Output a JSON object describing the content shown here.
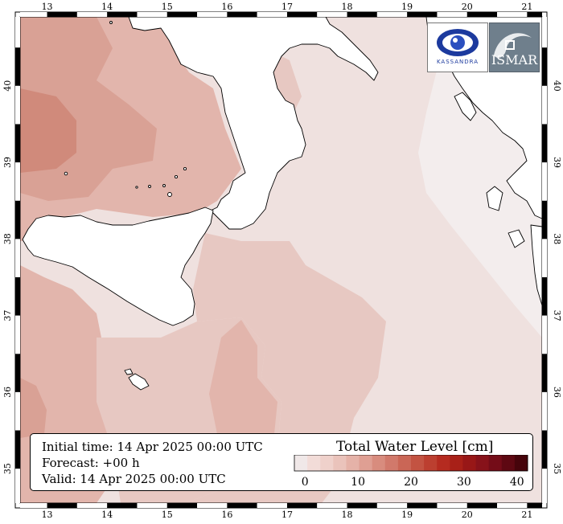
{
  "map": {
    "lon_ticks": [
      13,
      14,
      15,
      16,
      17,
      18,
      19,
      20,
      21
    ],
    "lat_ticks": [
      35,
      36,
      37,
      38,
      39,
      40
    ],
    "lon_range": [
      12.55,
      21.25
    ],
    "lat_range": [
      34.55,
      40.9
    ],
    "land_color": "#ffffff",
    "coastline_color": "#000000",
    "sea_colors": {
      "level_0": "#f3eded",
      "level_1": "#efe1df",
      "level_2": "#eed6d2",
      "level_3": "#e7c8c2",
      "level_4": "#e2b5ac",
      "level_5": "#d9a195",
      "level_6": "#d08a7b"
    }
  },
  "logos": {
    "left": {
      "name": "kassandra-logo",
      "text": "KASSANDRA"
    },
    "right": {
      "name": "ismar-logo",
      "text": "ISMAR"
    }
  },
  "info": {
    "initial_time": "Initial time: 14 Apr 2025 00:00 UTC",
    "forecast": "Forecast: +00 h",
    "valid": "Valid: 14 Apr 2025 00:00 UTC"
  },
  "legend": {
    "title": "Total Water Level [cm]",
    "ticks": [
      0,
      10,
      20,
      30,
      40
    ],
    "range": [
      -2,
      42
    ],
    "colors": [
      "#f0e8e8",
      "#f2dcd8",
      "#efd1cb",
      "#eac3bb",
      "#e5b2a8",
      "#df9f93",
      "#d88c7e",
      "#d1796b",
      "#ca6656",
      "#c35342",
      "#bc3f30",
      "#b52b20",
      "#a82018",
      "#981717",
      "#87121a",
      "#740c18",
      "#5e0812",
      "#46040b"
    ]
  }
}
